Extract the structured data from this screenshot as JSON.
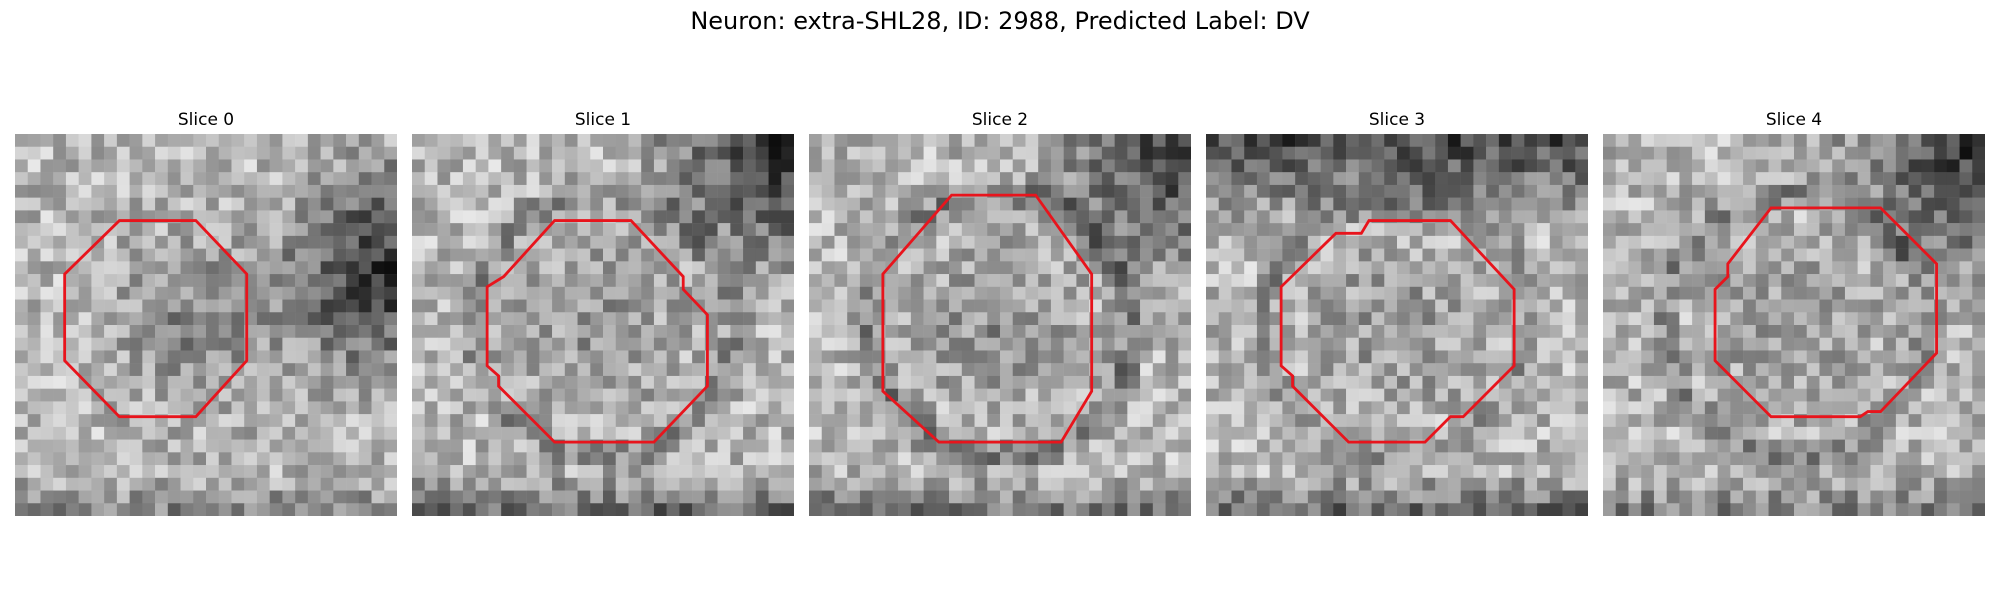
{
  "figure": {
    "title": "Neuron: extra-SHL28, ID: 2988, Predicted Label: DV"
  },
  "outline_color": "#e8141c",
  "colormap": "grayscale",
  "panels": [
    {
      "title": "Slice 0",
      "seed": 11,
      "blob": 0.82,
      "ring": 0.15,
      "dark_corner": "right",
      "dark_bottom": 0.5
    },
    {
      "title": "Slice 1",
      "seed": 23,
      "blob": 0.55,
      "ring": 0.55,
      "dark_corner": "top-right",
      "dark_bottom": 0.85
    },
    {
      "title": "Slice 2",
      "seed": 37,
      "blob": 0.6,
      "ring": 0.75,
      "dark_corner": "top-right",
      "dark_bottom": 0.7
    },
    {
      "title": "Slice 3",
      "seed": 41,
      "blob": 0.55,
      "ring": 0.5,
      "dark_corner": "top",
      "dark_bottom": 0.85
    },
    {
      "title": "Slice 4",
      "seed": 59,
      "blob": 0.5,
      "ring": 0.6,
      "dark_corner": "top-right",
      "dark_bottom": 0.6
    }
  ]
}
